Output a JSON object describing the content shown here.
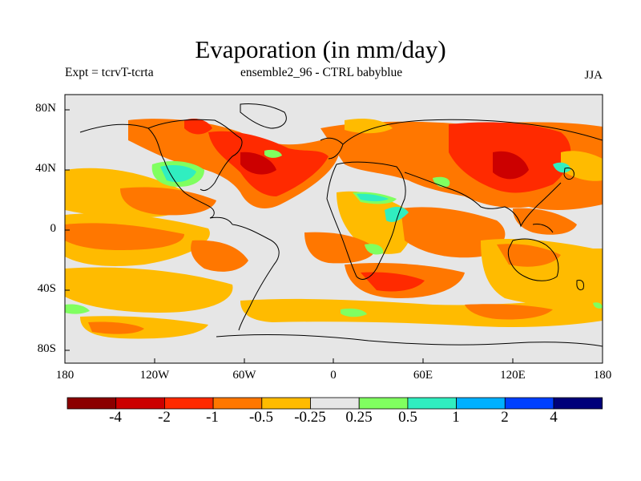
{
  "header": {
    "title": "Evaporation (in mm/day)",
    "experiment": "Expt = tcrvT-tcrta",
    "ensemble": "ensemble2_96 - CTRL babyblue",
    "season": "JJA"
  },
  "axes": {
    "lat_labels": [
      "80N",
      "40N",
      "0",
      "40S",
      "80S"
    ],
    "lon_labels": [
      "180",
      "120W",
      "60W",
      "0",
      "60E",
      "120E",
      "180"
    ]
  },
  "colorbar": {
    "labels": [
      "-4",
      "-2",
      "-1",
      "-0.5",
      "-0.25",
      "0.25",
      "0.5",
      "1",
      "2",
      "4"
    ],
    "colors": [
      "#8b0000",
      "#cc0000",
      "#ff2a00",
      "#ff7700",
      "#ffbb00",
      "#e6e6e6",
      "#80ff60",
      "#30eec0",
      "#00b0ff",
      "#0040ff",
      "#00007a"
    ]
  },
  "colors": {
    "background": "#e6e6e6",
    "land": "#000000"
  }
}
